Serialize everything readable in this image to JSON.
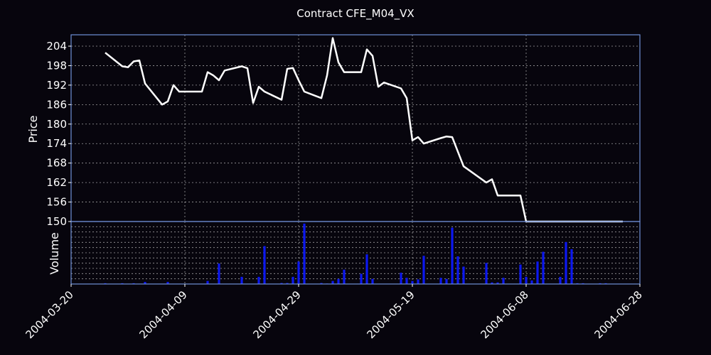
{
  "chart_data": {
    "type": "line",
    "title": "Contract CFE_M04_VX",
    "x_ticks": [
      "2004-03-20",
      "2004-04-09",
      "2004-04-29",
      "2004-05-19",
      "2004-06-08",
      "2004-06-28"
    ],
    "xlim": [
      "2004-03-20",
      "2004-06-28"
    ],
    "grid": true,
    "panels": {
      "price": {
        "ylabel": "Price",
        "ylim": [
          150,
          207.5
        ],
        "y_ticks": [
          150,
          156,
          162,
          168,
          174,
          180,
          186,
          192,
          198,
          204
        ],
        "series": [
          {
            "x": [
              "2004-03-26",
              "2004-03-29",
              "2004-03-30",
              "2004-03-31",
              "2004-04-01",
              "2004-04-02",
              "2004-04-05",
              "2004-04-06",
              "2004-04-07",
              "2004-04-08",
              "2004-04-12",
              "2004-04-13",
              "2004-04-14",
              "2004-04-15",
              "2004-04-16",
              "2004-04-19",
              "2004-04-20",
              "2004-04-21",
              "2004-04-22",
              "2004-04-23",
              "2004-04-26",
              "2004-04-27",
              "2004-04-28",
              "2004-04-29",
              "2004-04-30",
              "2004-05-03",
              "2004-05-04",
              "2004-05-05",
              "2004-05-06",
              "2004-05-07",
              "2004-05-10",
              "2004-05-11",
              "2004-05-12",
              "2004-05-13",
              "2004-05-14",
              "2004-05-17",
              "2004-05-18",
              "2004-05-19",
              "2004-05-20",
              "2004-05-21",
              "2004-05-24",
              "2004-05-25",
              "2004-05-26",
              "2004-05-27",
              "2004-05-28",
              "2004-06-01",
              "2004-06-02",
              "2004-06-03",
              "2004-06-04",
              "2004-06-07",
              "2004-06-08",
              "2004-06-09",
              "2004-06-10",
              "2004-06-11",
              "2004-06-14",
              "2004-06-15",
              "2004-06-16",
              "2004-06-17",
              "2004-06-18",
              "2004-06-21",
              "2004-06-22",
              "2004-06-23",
              "2004-06-24",
              "2004-06-25"
            ],
            "values": [
              202.0,
              197.8,
              197.5,
              199.3,
              199.6,
              192.5,
              186.0,
              187.0,
              192.0,
              190.0,
              190.0,
              196.0,
              195.0,
              193.5,
              196.5,
              197.8,
              197.2,
              186.5,
              191.5,
              190.0,
              187.5,
              197.0,
              197.3,
              193.5,
              190.0,
              188.0,
              195.0,
              206.5,
              199.0,
              196.0,
              196.0,
              203.0,
              201.0,
              191.5,
              192.8,
              191.0,
              188.0,
              175.0,
              176.0,
              174.0,
              175.7,
              176.2,
              176.0,
              171.5,
              167.0,
              162.0,
              163.0,
              158.0,
              158.0,
              158.0,
              150.0,
              150.0,
              150.0,
              150.0,
              150.0,
              150.0,
              150.0,
              150.0,
              150.0,
              150.0,
              150.0,
              150.0,
              150.0,
              150.0
            ]
          }
        ]
      },
      "volume": {
        "ylabel": "Volume",
        "ylim": [
          0,
          12200
        ],
        "series": [
          {
            "x": [
              "2004-03-26",
              "2004-03-29",
              "2004-03-31",
              "2004-04-02",
              "2004-04-06",
              "2004-04-13",
              "2004-04-15",
              "2004-04-19",
              "2004-04-22",
              "2004-04-23",
              "2004-04-26",
              "2004-04-27",
              "2004-04-28",
              "2004-04-29",
              "2004-04-30",
              "2004-05-03",
              "2004-05-04",
              "2004-05-05",
              "2004-05-06",
              "2004-05-07",
              "2004-05-10",
              "2004-05-11",
              "2004-05-12",
              "2004-05-17",
              "2004-05-18",
              "2004-05-19",
              "2004-05-20",
              "2004-05-21",
              "2004-05-24",
              "2004-05-25",
              "2004-05-26",
              "2004-05-27",
              "2004-05-28",
              "2004-06-01",
              "2004-06-02",
              "2004-06-03",
              "2004-06-04",
              "2004-06-07",
              "2004-06-08",
              "2004-06-09",
              "2004-06-10",
              "2004-06-11",
              "2004-06-14",
              "2004-06-15",
              "2004-06-16",
              "2004-06-17",
              "2004-06-18",
              "2004-06-21",
              "2004-06-22"
            ],
            "values": [
              150,
              150,
              150,
              400,
              400,
              600,
              4000,
              1400,
              1400,
              7400,
              200,
              200,
              1400,
              4400,
              11800,
              200,
              100,
              600,
              1000,
              2800,
              2000,
              5800,
              1000,
              2200,
              1200,
              600,
              900,
              5500,
              1200,
              1000,
              11000,
              5400,
              3400,
              4100,
              300,
              300,
              1200,
              3800,
              1400,
              700,
              4400,
              6300,
              1400,
              8200,
              6800,
              150,
              150,
              150,
              150
            ]
          }
        ]
      }
    }
  }
}
